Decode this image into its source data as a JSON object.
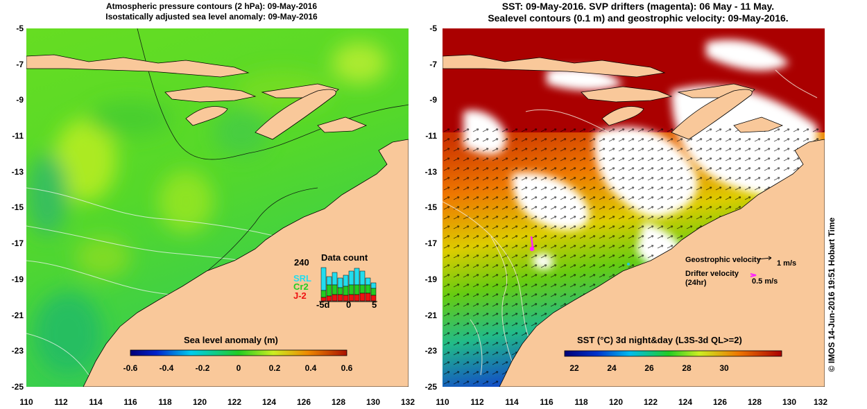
{
  "left_panel": {
    "title_line1": "Atmospheric pressure contours (2 hPa): 09-May-2016",
    "title_line2": "Isostatically adjusted sea level anomaly: 09-May-2016",
    "colorbar": {
      "label": "Sea level anomaly (m)",
      "ticks": [
        "-0.6",
        "-0.4",
        "-0.2",
        "0",
        "0.2",
        "0.4",
        "0.6"
      ]
    },
    "data_count": {
      "title": "Data count",
      "ymax": "240",
      "series": [
        "SRL",
        "Cr2",
        "J-2"
      ],
      "series_colors": [
        "#22ddee",
        "#22cc22",
        "#ee1111"
      ],
      "x_ticks": [
        "-5d",
        "0",
        "5"
      ]
    }
  },
  "right_panel": {
    "title_line1": "SST: 09-May-2016. SVP drifters (magenta): 06 May - 11 May.",
    "title_line2": "Sealevel contours (0.1 m) and geostrophic velocity: 09-May-2016.",
    "colorbar": {
      "label": "SST (°C) 3d night&day (L3S-3d QL>=2)",
      "ticks": [
        "22",
        "24",
        "26",
        "28",
        "30"
      ]
    },
    "legend": {
      "geostrophic_label": "Geostrophic velocity",
      "geostrophic_value": "1 m/s",
      "drifter_label_line1": "Drifter velocity",
      "drifter_label_line2": "(24hr)",
      "drifter_value": "0.5 m/s"
    }
  },
  "axes": {
    "y_ticks": [
      "-5",
      "-7",
      "-9",
      "-11",
      "-13",
      "-15",
      "-17",
      "-19",
      "-21",
      "-23",
      "-25"
    ],
    "x_ticks": [
      "110",
      "112",
      "114",
      "116",
      "118",
      "120",
      "122",
      "124",
      "126",
      "128",
      "130",
      "132"
    ]
  },
  "credit": "© IMOS 14-Jun-2016 19:51 Hobart Time",
  "colors": {
    "land": "#f9c89a",
    "ocean_green": "#55dd22",
    "sst_dark_red": "#aa0000",
    "drifter": "#ff22ff"
  }
}
